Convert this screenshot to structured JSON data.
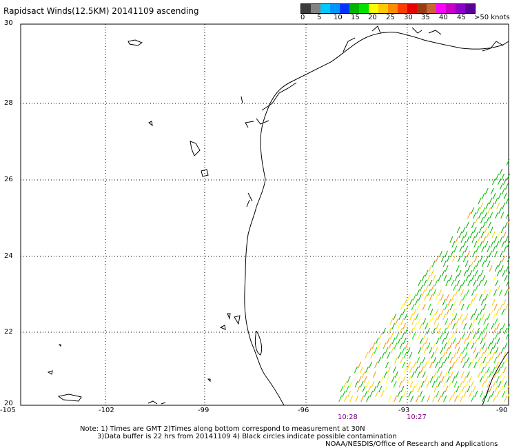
{
  "title": "Rapidsact Winds(12.5KM) 20141109 ascending",
  "legend": {
    "colors": [
      "#3c3c3c",
      "#828282",
      "#00c8ff",
      "#0096ff",
      "#0032ff",
      "#00b400",
      "#00e100",
      "#ffff00",
      "#ffc800",
      "#ff8c00",
      "#ff3c00",
      "#e60000",
      "#963c14",
      "#c86432",
      "#ff00ff",
      "#c800c8",
      "#8c00c8",
      "#5a0096"
    ],
    "labels": [
      "0",
      "5",
      "10",
      "15",
      "20",
      "25",
      "30",
      "35",
      "40",
      "45",
      ">50 knots"
    ]
  },
  "axes": {
    "lat_labels": [
      "30",
      "28",
      "26",
      "24",
      "22",
      "20"
    ],
    "lon_labels": [
      "-105",
      "-102",
      "-99",
      "-96",
      "-93",
      "-90"
    ]
  },
  "times": [
    "10:28",
    "10:27"
  ],
  "notes": [
    "Note: 1) Times are GMT 2)Times along bottom correspond to measurement at 30N",
    "3)Data buffer is 22 hrs from 20141109 4) Black circles indicate possible contamination",
    "NOAA/NESDIS/Office of Research and Applications"
  ]
}
